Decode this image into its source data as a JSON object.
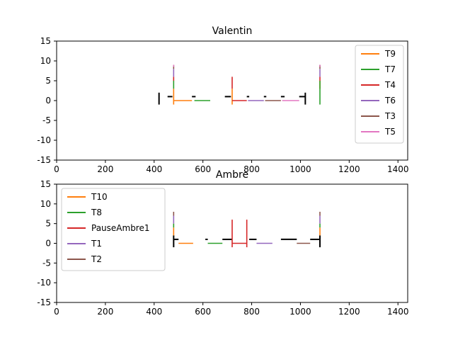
{
  "chart_data": [
    {
      "type": "line",
      "title": "Valentin",
      "xlim": [
        0,
        1440
      ],
      "ylim": [
        -15,
        15
      ],
      "xticks": [
        0,
        200,
        400,
        600,
        800,
        1000,
        1200,
        1400
      ],
      "yticks": [
        -15,
        -10,
        -5,
        0,
        5,
        10,
        15
      ],
      "legend_position": "top-right",
      "black_marks": [
        {
          "x1": 420,
          "y1": -1,
          "x2": 420,
          "y2": 2
        },
        {
          "x1": 455,
          "y1": 1,
          "x2": 475,
          "y2": 1
        },
        {
          "x1": 555,
          "y1": 1,
          "x2": 570,
          "y2": 1
        },
        {
          "x1": 690,
          "y1": 1,
          "x2": 715,
          "y2": 1
        },
        {
          "x1": 780,
          "y1": 1,
          "x2": 790,
          "y2": 1
        },
        {
          "x1": 850,
          "y1": 1,
          "x2": 860,
          "y2": 1
        },
        {
          "x1": 920,
          "y1": 1,
          "x2": 935,
          "y2": 1
        },
        {
          "x1": 995,
          "y1": 1,
          "x2": 1020,
          "y2": 1
        },
        {
          "x1": 1020,
          "y1": -1,
          "x2": 1020,
          "y2": 2
        }
      ],
      "series": [
        {
          "name": "T9",
          "color": "#ff7f0e",
          "segments": [
            [
              [
                480,
                0
              ],
              [
                555,
                0
              ]
            ],
            [
              [
                720,
                -1
              ],
              [
                720,
                3
              ]
            ],
            [
              [
                480,
                -1
              ],
              [
                480,
                3
              ]
            ],
            [
              [
                1080,
                3
              ],
              [
                1080,
                5
              ]
            ]
          ]
        },
        {
          "name": "T7",
          "color": "#2ca02c",
          "segments": [
            [
              [
                565,
                0
              ],
              [
                630,
                0
              ]
            ],
            [
              [
                480,
                3
              ],
              [
                480,
                5
              ]
            ],
            [
              [
                1080,
                -1
              ],
              [
                1080,
                5
              ]
            ]
          ]
        },
        {
          "name": "T4",
          "color": "#d62728",
          "segments": [
            [
              [
                720,
                0
              ],
              [
                780,
                0
              ]
            ],
            [
              [
                720,
                3
              ],
              [
                720,
                6
              ]
            ],
            [
              [
                480,
                5
              ],
              [
                480,
                6
              ]
            ],
            [
              [
                1080,
                5
              ],
              [
                1080,
                6
              ]
            ]
          ]
        },
        {
          "name": "T6",
          "color": "#9467bd",
          "segments": [
            [
              [
                785,
                0
              ],
              [
                850,
                0
              ]
            ],
            [
              [
                480,
                6
              ],
              [
                480,
                8
              ]
            ],
            [
              [
                1080,
                6
              ],
              [
                1080,
                8
              ]
            ]
          ]
        },
        {
          "name": "T3",
          "color": "#8c564b",
          "segments": [
            [
              [
                855,
                0
              ],
              [
                920,
                0
              ]
            ],
            [
              [
                480,
                8
              ],
              [
                480,
                9
              ]
            ],
            [
              [
                1080,
                8
              ],
              [
                1080,
                9
              ]
            ]
          ]
        },
        {
          "name": "T5",
          "color": "#e377c2",
          "segments": [
            [
              [
                925,
                0
              ],
              [
                995,
                0
              ]
            ],
            [
              [
                480,
                8.5
              ],
              [
                480,
                9
              ]
            ],
            [
              [
                1080,
                8.5
              ],
              [
                1080,
                9
              ]
            ]
          ]
        }
      ]
    },
    {
      "type": "line",
      "title": "Ambre",
      "xlim": [
        0,
        1440
      ],
      "ylim": [
        -15,
        15
      ],
      "xticks": [
        0,
        200,
        400,
        600,
        800,
        1000,
        1200,
        1400
      ],
      "yticks": [
        -15,
        -10,
        -5,
        0,
        5,
        10,
        15
      ],
      "legend_position": "top-left",
      "black_marks": [
        {
          "x1": 480,
          "y1": -1,
          "x2": 480,
          "y2": 2
        },
        {
          "x1": 480,
          "y1": 1,
          "x2": 500,
          "y2": 1
        },
        {
          "x1": 610,
          "y1": 1,
          "x2": 620,
          "y2": 1
        },
        {
          "x1": 680,
          "y1": 1,
          "x2": 720,
          "y2": 1
        },
        {
          "x1": 790,
          "y1": 1,
          "x2": 820,
          "y2": 1
        },
        {
          "x1": 920,
          "y1": 1,
          "x2": 985,
          "y2": 1
        },
        {
          "x1": 1040,
          "y1": 1,
          "x2": 1080,
          "y2": 1
        },
        {
          "x1": 1080,
          "y1": -1,
          "x2": 1080,
          "y2": 2
        }
      ],
      "series": [
        {
          "name": "T10",
          "color": "#ff7f0e",
          "segments": [
            [
              [
                500,
                0
              ],
              [
                560,
                0
              ]
            ],
            [
              [
                480,
                2
              ],
              [
                480,
                4
              ]
            ],
            [
              [
                1080,
                2
              ],
              [
                1080,
                4
              ]
            ]
          ]
        },
        {
          "name": "T8",
          "color": "#2ca02c",
          "segments": [
            [
              [
                620,
                0
              ],
              [
                680,
                0
              ]
            ],
            [
              [
                480,
                4
              ],
              [
                480,
                5
              ]
            ],
            [
              [
                1080,
                4
              ],
              [
                1080,
                5
              ]
            ]
          ]
        },
        {
          "name": "PauseAmbre1",
          "color": "#d62728",
          "segments": [
            [
              [
                720,
                0
              ],
              [
                780,
                0
              ]
            ],
            [
              [
                720,
                -1
              ],
              [
                720,
                6
              ]
            ],
            [
              [
                780,
                -1
              ],
              [
                780,
                6
              ]
            ]
          ]
        },
        {
          "name": "T1",
          "color": "#9467bd",
          "segments": [
            [
              [
                820,
                0
              ],
              [
                885,
                0
              ]
            ],
            [
              [
                480,
                5
              ],
              [
                480,
                7
              ]
            ],
            [
              [
                1080,
                5
              ],
              [
                1080,
                7
              ]
            ]
          ]
        },
        {
          "name": "T2",
          "color": "#8c564b",
          "segments": [
            [
              [
                985,
                0
              ],
              [
                1040,
                0
              ]
            ],
            [
              [
                480,
                7
              ],
              [
                480,
                8
              ]
            ],
            [
              [
                1080,
                7
              ],
              [
                1080,
                8
              ]
            ]
          ]
        }
      ]
    }
  ]
}
